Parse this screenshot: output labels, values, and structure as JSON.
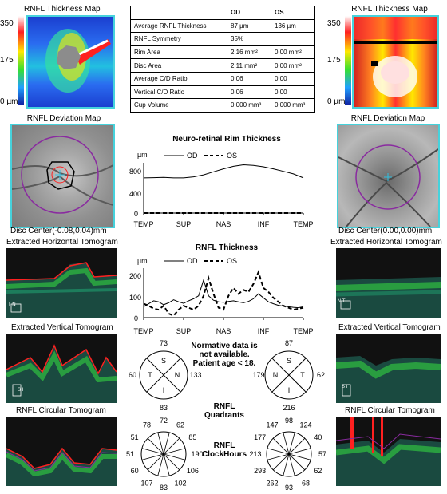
{
  "left_thickness_map": {
    "title": "RNFL Thickness Map",
    "scale_top": "350",
    "scale_mid": "175",
    "scale_bottom": "0 µm"
  },
  "right_thickness_map": {
    "title": "RNFL Thickness Map",
    "scale_top": "350",
    "scale_mid": "175",
    "scale_bottom": "0 µm"
  },
  "table": {
    "headers": [
      "",
      "OD",
      "OS"
    ],
    "rows": [
      [
        "Average RNFL Thickness",
        "87 µm",
        "136 µm"
      ],
      [
        "RNFL Symmetry",
        "35%",
        ""
      ],
      [
        "Rim Area",
        "2.16 mm²",
        "0.00 mm²"
      ],
      [
        "Disc Area",
        "2.11 mm²",
        "0.00 mm²"
      ],
      [
        "Average C/D Ratio",
        "0.06",
        "0.00"
      ],
      [
        "Vertical C/D Ratio",
        "0.06",
        "0.00"
      ],
      [
        "Cup Volume",
        "0.000 mm³",
        "0.000 mm³"
      ]
    ]
  },
  "left_deviation": {
    "title": "RNFL Deviation Map",
    "disc_center": "Disc Center(-0.08,0.04)mm"
  },
  "right_deviation": {
    "title": "RNFL Deviation Map",
    "disc_center": "Disc Center(0.00,0.00)mm"
  },
  "left_tomograms": {
    "horizontal": "Extracted Horizontal Tomogram",
    "vertical": "Extracted Vertical Tomogram",
    "circular": "RNFL Circular Tomogram"
  },
  "right_tomograms": {
    "horizontal": "Extracted Horizontal Tomogram",
    "vertical": "Extracted Vertical Tomogram",
    "circular": "RNFL Circular Tomogram"
  },
  "orientation": {
    "left_h": "T  N",
    "left_v": "S  I",
    "right_h": "N  T",
    "right_v": "S  I"
  },
  "rim_chart": {
    "title": "Neuro-retinal Rim Thickness",
    "unit": "µm",
    "legend_od": "OD",
    "legend_os": "OS",
    "yticks": [
      "800",
      "400",
      "0"
    ],
    "xticks": [
      "TEMP",
      "SUP",
      "NAS",
      "INF",
      "TEMP"
    ]
  },
  "rnfl_chart": {
    "title": "RNFL Thickness",
    "unit": "µm",
    "legend_od": "OD",
    "legend_os": "OS",
    "yticks": [
      "200",
      "100",
      "0"
    ],
    "xticks": [
      "TEMP",
      "SUP",
      "NAS",
      "INF",
      "TEMP"
    ]
  },
  "chart_data": [
    {
      "type": "line",
      "title": "Neuro-retinal Rim Thickness",
      "ylabel": "µm",
      "x": [
        0,
        1,
        2,
        3,
        4,
        5,
        6,
        7,
        8,
        9,
        10,
        11,
        12,
        13,
        14,
        15,
        16
      ],
      "xticks": [
        "TEMP",
        "SUP",
        "NAS",
        "INF",
        "TEMP"
      ],
      "ylim": [
        0,
        1000
      ],
      "series": [
        {
          "name": "OD",
          "style": "solid",
          "values": [
            700,
            705,
            710,
            700,
            700,
            720,
            760,
            820,
            880,
            930,
            960,
            950,
            920,
            880,
            830,
            780,
            700
          ]
        },
        {
          "name": "OS",
          "style": "dashed",
          "values": [
            0,
            0,
            0,
            0,
            0,
            0,
            0,
            0,
            0,
            0,
            0,
            0,
            0,
            0,
            0,
            0,
            0
          ]
        }
      ]
    },
    {
      "type": "line",
      "title": "RNFL Thickness",
      "ylabel": "µm",
      "x": [
        0,
        1,
        2,
        3,
        4,
        5,
        6,
        7,
        8,
        9,
        10,
        11,
        12,
        13,
        14,
        15,
        16,
        17,
        18,
        19,
        20,
        21,
        22,
        23,
        24,
        25,
        26,
        27,
        28,
        29,
        30,
        31,
        32
      ],
      "xticks": [
        "TEMP",
        "SUP",
        "NAS",
        "INF",
        "TEMP"
      ],
      "ylim": [
        0,
        250
      ],
      "series": [
        {
          "name": "OD",
          "style": "solid",
          "values": [
            55,
            70,
            85,
            80,
            65,
            75,
            90,
            80,
            72,
            85,
            95,
            110,
            190,
            110,
            88,
            80,
            78,
            82,
            85,
            80,
            75,
            82,
            95,
            120,
            100,
            80,
            70,
            62,
            58,
            55,
            52,
            50,
            55
          ]
        },
        {
          "name": "OS",
          "style": "dashed",
          "values": [
            70,
            60,
            45,
            40,
            60,
            20,
            10,
            40,
            60,
            50,
            40,
            60,
            110,
            200,
            120,
            50,
            40,
            110,
            150,
            120,
            140,
            130,
            170,
            230,
            150,
            130,
            100,
            80,
            60,
            50,
            40,
            45,
            50
          ]
        }
      ]
    }
  ],
  "normative_note": "Normative data is not available. Patient age < 18.",
  "quadrants_label": "RNFL Quadrants",
  "clockhours_label": "RNFL ClockHours",
  "od_quadrants": {
    "S": "73",
    "N": "133",
    "I": "83",
    "T": "60"
  },
  "os_quadrants": {
    "S": "87",
    "N": "179",
    "I": "216",
    "T": "62"
  },
  "quadrant_letters_od": {
    "top": "S",
    "right": "N",
    "bottom": "I",
    "left": "T"
  },
  "quadrant_letters_os": {
    "top": "S",
    "right": "T",
    "bottom": "I",
    "left": "N"
  },
  "od_clock": [
    "62",
    "85",
    "190",
    "106",
    "102",
    "83",
    "107",
    "60",
    "51",
    "51",
    "78",
    "72"
  ],
  "os_clock": [
    "124",
    "40",
    "57",
    "62",
    "68",
    "93",
    "262",
    "293",
    "213",
    "177",
    "147",
    "98"
  ],
  "colors": {
    "frame": "#46d2dc",
    "red": "#ff2020",
    "purple": "#8a2ba0"
  }
}
